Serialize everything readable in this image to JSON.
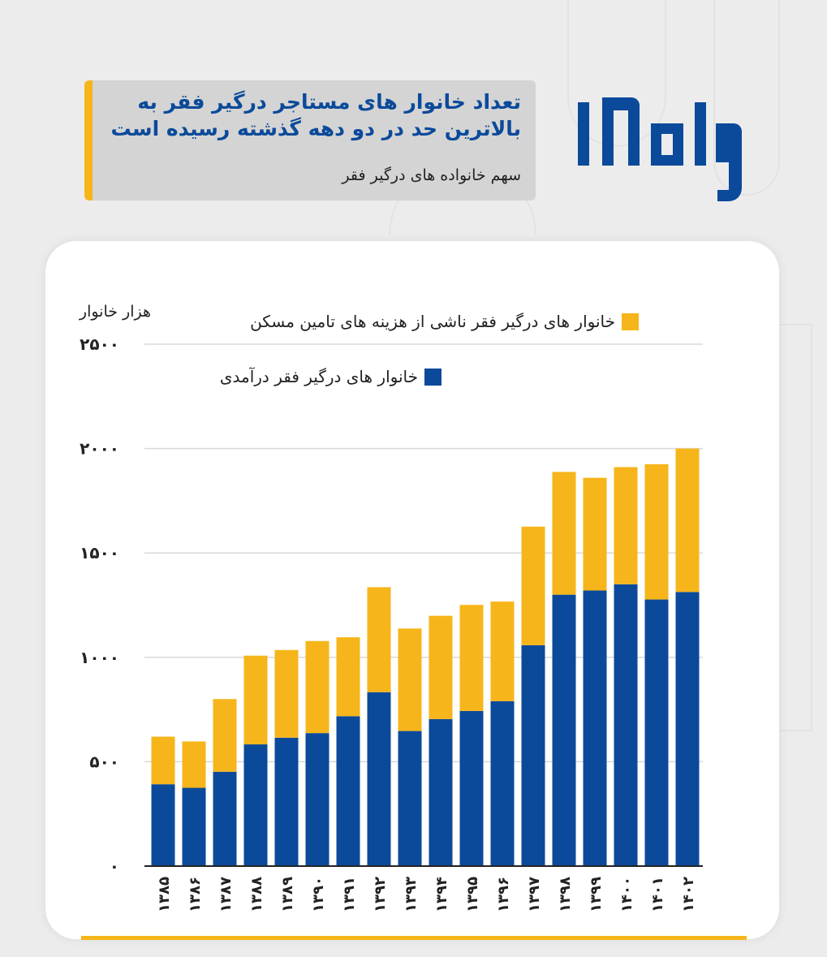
{
  "header": {
    "title": "تعداد خانوار های مستاجر درگیر فقر به بالاترین حد در دو دهه گذشته رسیده است",
    "subtitle": "سهم خانواده های درگیر فقر"
  },
  "brand": {
    "logo_text": "بامداد",
    "logo_color": "#0b4a9a"
  },
  "colors": {
    "income": "#0b4a9a",
    "housing": "#f6b51a",
    "accent": "#f6b51a"
  },
  "chart_data": {
    "type": "bar",
    "stacked": true,
    "ylabel": "هزار خانوار",
    "ylim": [
      0,
      2500
    ],
    "yticks": [
      0,
      500,
      1000,
      1500,
      2000,
      2500
    ],
    "ytick_labels": [
      "۰",
      "۵۰۰",
      "۱۰۰۰",
      "۱۵۰۰",
      "۲۰۰۰",
      "۲۵۰۰"
    ],
    "grid": true,
    "legend_position": "top-right",
    "categories": [
      "۱۳۸۵",
      "۱۳۸۶",
      "۱۳۸۷",
      "۱۳۸۸",
      "۱۳۸۹",
      "۱۳۹۰",
      "۱۳۹۱",
      "۱۳۹۲",
      "۱۳۹۳",
      "۱۳۹۴",
      "۱۳۹۵",
      "۱۳۹۶",
      "۱۳۹۷",
      "۱۳۹۸",
      "۱۳۹۹",
      "۱۴۰۰",
      "۱۴۰۱",
      "۱۴۰۲"
    ],
    "series": [
      {
        "name": "خانوار های درگیر فقر درآمدی",
        "color": "#0b4a9a",
        "values": [
          392,
          375,
          452,
          583,
          615,
          637,
          718,
          833,
          647,
          704,
          743,
          790,
          1058,
          1300,
          1320,
          1350,
          1277,
          1313
        ]
      },
      {
        "name": "خانوار های درگیر فقر ناشی از هزینه های تامین مسکن",
        "color": "#f6b51a",
        "values": [
          228,
          222,
          348,
          425,
          420,
          441,
          378,
          503,
          491,
          495,
          508,
          477,
          568,
          588,
          540,
          561,
          648,
          687
        ]
      }
    ]
  }
}
